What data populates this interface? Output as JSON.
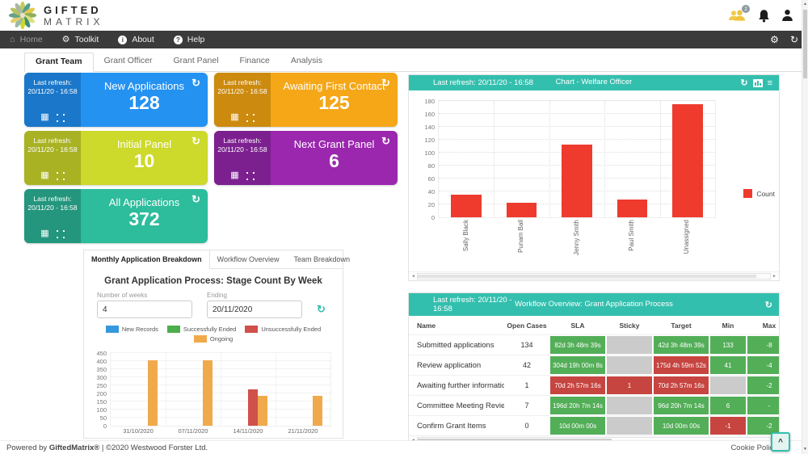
{
  "colors": {
    "teal": "#33bfae",
    "nav_bg": "#3b3b3b",
    "state_green": "#53ae58",
    "state_red": "#c64540",
    "state_gray": "#cbcbcb"
  },
  "icons": {
    "refresh": "↻",
    "home": "⌂",
    "gear": "⚙",
    "hamburger": "≡",
    "grid": "▦",
    "info": "i",
    "help": "?",
    "caret_up": "^",
    "arrow_up": "▲",
    "arrow_down": "▼",
    "arrow_left": "◄",
    "arrow_right": "►"
  },
  "header": {
    "logo_line1": "GIFTED",
    "logo_line2": "MATRIX",
    "badge_count": "2"
  },
  "nav": {
    "items": [
      {
        "label": "Home"
      },
      {
        "label": "Toolkit"
      },
      {
        "label": "About"
      },
      {
        "label": "Help"
      }
    ]
  },
  "tabs": [
    "Grant Team",
    "Grant Officer",
    "Grant Panel",
    "Finance",
    "Analysis"
  ],
  "kpi": {
    "cards": [
      {
        "title": "New Applications",
        "value": "128",
        "last_refresh": "Last refresh: 20/11/20 - 16:58",
        "color": "#2492f1",
        "color_dark": "#1a77c9"
      },
      {
        "title": "Awaiting First Contact",
        "value": "125",
        "last_refresh": "Last refresh: 20/11/20 - 16:58",
        "color": "#f5a718",
        "color_dark": "#cc8a0e"
      },
      {
        "title": "Initial Panel",
        "value": "10",
        "last_refresh": "Last refresh: 20/11/20 - 16:58",
        "color": "#cdd92b",
        "color_dark": "#a9b223"
      },
      {
        "title": "Next Grant Panel",
        "value": "6",
        "last_refresh": "Last refresh: 20/11/20 - 16:58",
        "color": "#9b27af",
        "color_dark": "#7c2090"
      },
      {
        "title": "All Applications",
        "value": "372",
        "last_refresh": "Last refresh: 20/11/20 - 16:58",
        "color": "#2dbc9c",
        "color_dark": "#23967d"
      }
    ]
  },
  "breakdown": {
    "tabs": [
      "Monthly Application Breakdown",
      "Workflow Overview",
      "Team Breakdown"
    ],
    "title": "Grant Application Process: Stage Count By Week",
    "weeks_label": "Number of weeks",
    "weeks_value": "4",
    "ending_label": "Ending",
    "ending_value": "20/11/2020"
  },
  "welfare": {
    "last_refresh": "Last refresh: 20/11/20 - 16:58",
    "title": "Chart - Welfare Officer"
  },
  "workflow": {
    "header": {
      "last_refresh": "Last refresh: 20/11/20 - 16:58",
      "title": "Workflow Overview: Grant Application Process"
    },
    "columns": [
      "Name",
      "Open Cases",
      "SLA",
      "Sticky",
      "Target",
      "Min",
      "Max"
    ],
    "rows": [
      {
        "name": "Submitted applications",
        "open_cases": "134",
        "sla": {
          "text": "82d 3h 48m 39s",
          "state": "green"
        },
        "sticky": {
          "text": "",
          "state": "gray"
        },
        "target": {
          "text": "42d 3h 48m 39s",
          "state": "green"
        },
        "min": {
          "text": "133",
          "state": "green"
        },
        "max": {
          "text": "-8",
          "state": "green"
        }
      },
      {
        "name": "Review application",
        "open_cases": "42",
        "sla": {
          "text": "304d 19h 00m 8s",
          "state": "green"
        },
        "sticky": {
          "text": "",
          "state": "gray"
        },
        "target": {
          "text": "175d 4h 59m 52s",
          "state": "red"
        },
        "min": {
          "text": "41",
          "state": "green"
        },
        "max": {
          "text": "-4",
          "state": "green"
        }
      },
      {
        "name": "Awaiting further information",
        "open_cases": "1",
        "sla": {
          "text": "70d 2h 57m 16s",
          "state": "red"
        },
        "sticky": {
          "text": "1",
          "state": "red"
        },
        "target": {
          "text": "70d 2h 57m 16s",
          "state": "red"
        },
        "min": {
          "text": "",
          "state": "gray"
        },
        "max": {
          "text": "-2",
          "state": "green"
        }
      },
      {
        "name": "Committee Meeting Review",
        "open_cases": "7",
        "sla": {
          "text": "196d 20h 7m 14s",
          "state": "green"
        },
        "sticky": {
          "text": "",
          "state": "gray"
        },
        "target": {
          "text": "96d 20h 7m 14s",
          "state": "green"
        },
        "min": {
          "text": "6",
          "state": "green"
        },
        "max": {
          "text": "-",
          "state": "green"
        }
      },
      {
        "name": "Confirm Grant Items",
        "open_cases": "0",
        "sla": {
          "text": "10d 00m 00s",
          "state": "green"
        },
        "sticky": {
          "text": "",
          "state": "gray"
        },
        "target": {
          "text": "10d 00m 00s",
          "state": "green"
        },
        "min": {
          "text": "-1",
          "state": "red"
        },
        "max": {
          "text": "-2",
          "state": "green"
        }
      }
    ]
  },
  "chart_data": [
    {
      "type": "bar",
      "title": "Chart - Welfare Officer",
      "categories": [
        "Sally Black",
        "Punam Ball",
        "Jenny Smith",
        "Paul Smith",
        "Unassigned"
      ],
      "values": [
        35,
        22,
        112,
        28,
        175
      ],
      "series_name": "Count",
      "color": "#ee3b2d",
      "ylim": [
        0,
        180
      ],
      "ystep": 20,
      "bar_pct": 11,
      "grid_style": "dotted",
      "xlabel_rotation": "vertical",
      "legend_position": "right",
      "grid": true
    },
    {
      "type": "bar",
      "title": "Grant Application Process: Stage Count By Week",
      "categories": [
        "31/10/2020",
        "07/11/2020",
        "14/11/2020",
        "21/11/2020"
      ],
      "series": [
        {
          "name": "New Records",
          "color": "#3598dc",
          "values": [
            0,
            0,
            0,
            0
          ]
        },
        {
          "name": "Successfully Ended",
          "color": "#4cae4c",
          "values": [
            0,
            0,
            0,
            0
          ]
        },
        {
          "name": "Unsuccessfully Ended",
          "color": "#d0504a",
          "values": [
            0,
            0,
            225,
            0
          ]
        },
        {
          "name": "Ongoing",
          "color": "#f0a94b",
          "values": [
            405,
            405,
            185,
            185
          ]
        }
      ],
      "ylim": [
        0,
        450
      ],
      "ystep": 50,
      "bar_pct": 4.5,
      "grid_style": "solid",
      "legend_position": "top",
      "grid": true
    }
  ],
  "footer": {
    "powered_prefix": "Powered by",
    "brand": "GiftedMatrix®",
    "suffix": "| ©2020 Westwood Forster Ltd.",
    "cookie_policy": "Cookie Policy"
  }
}
